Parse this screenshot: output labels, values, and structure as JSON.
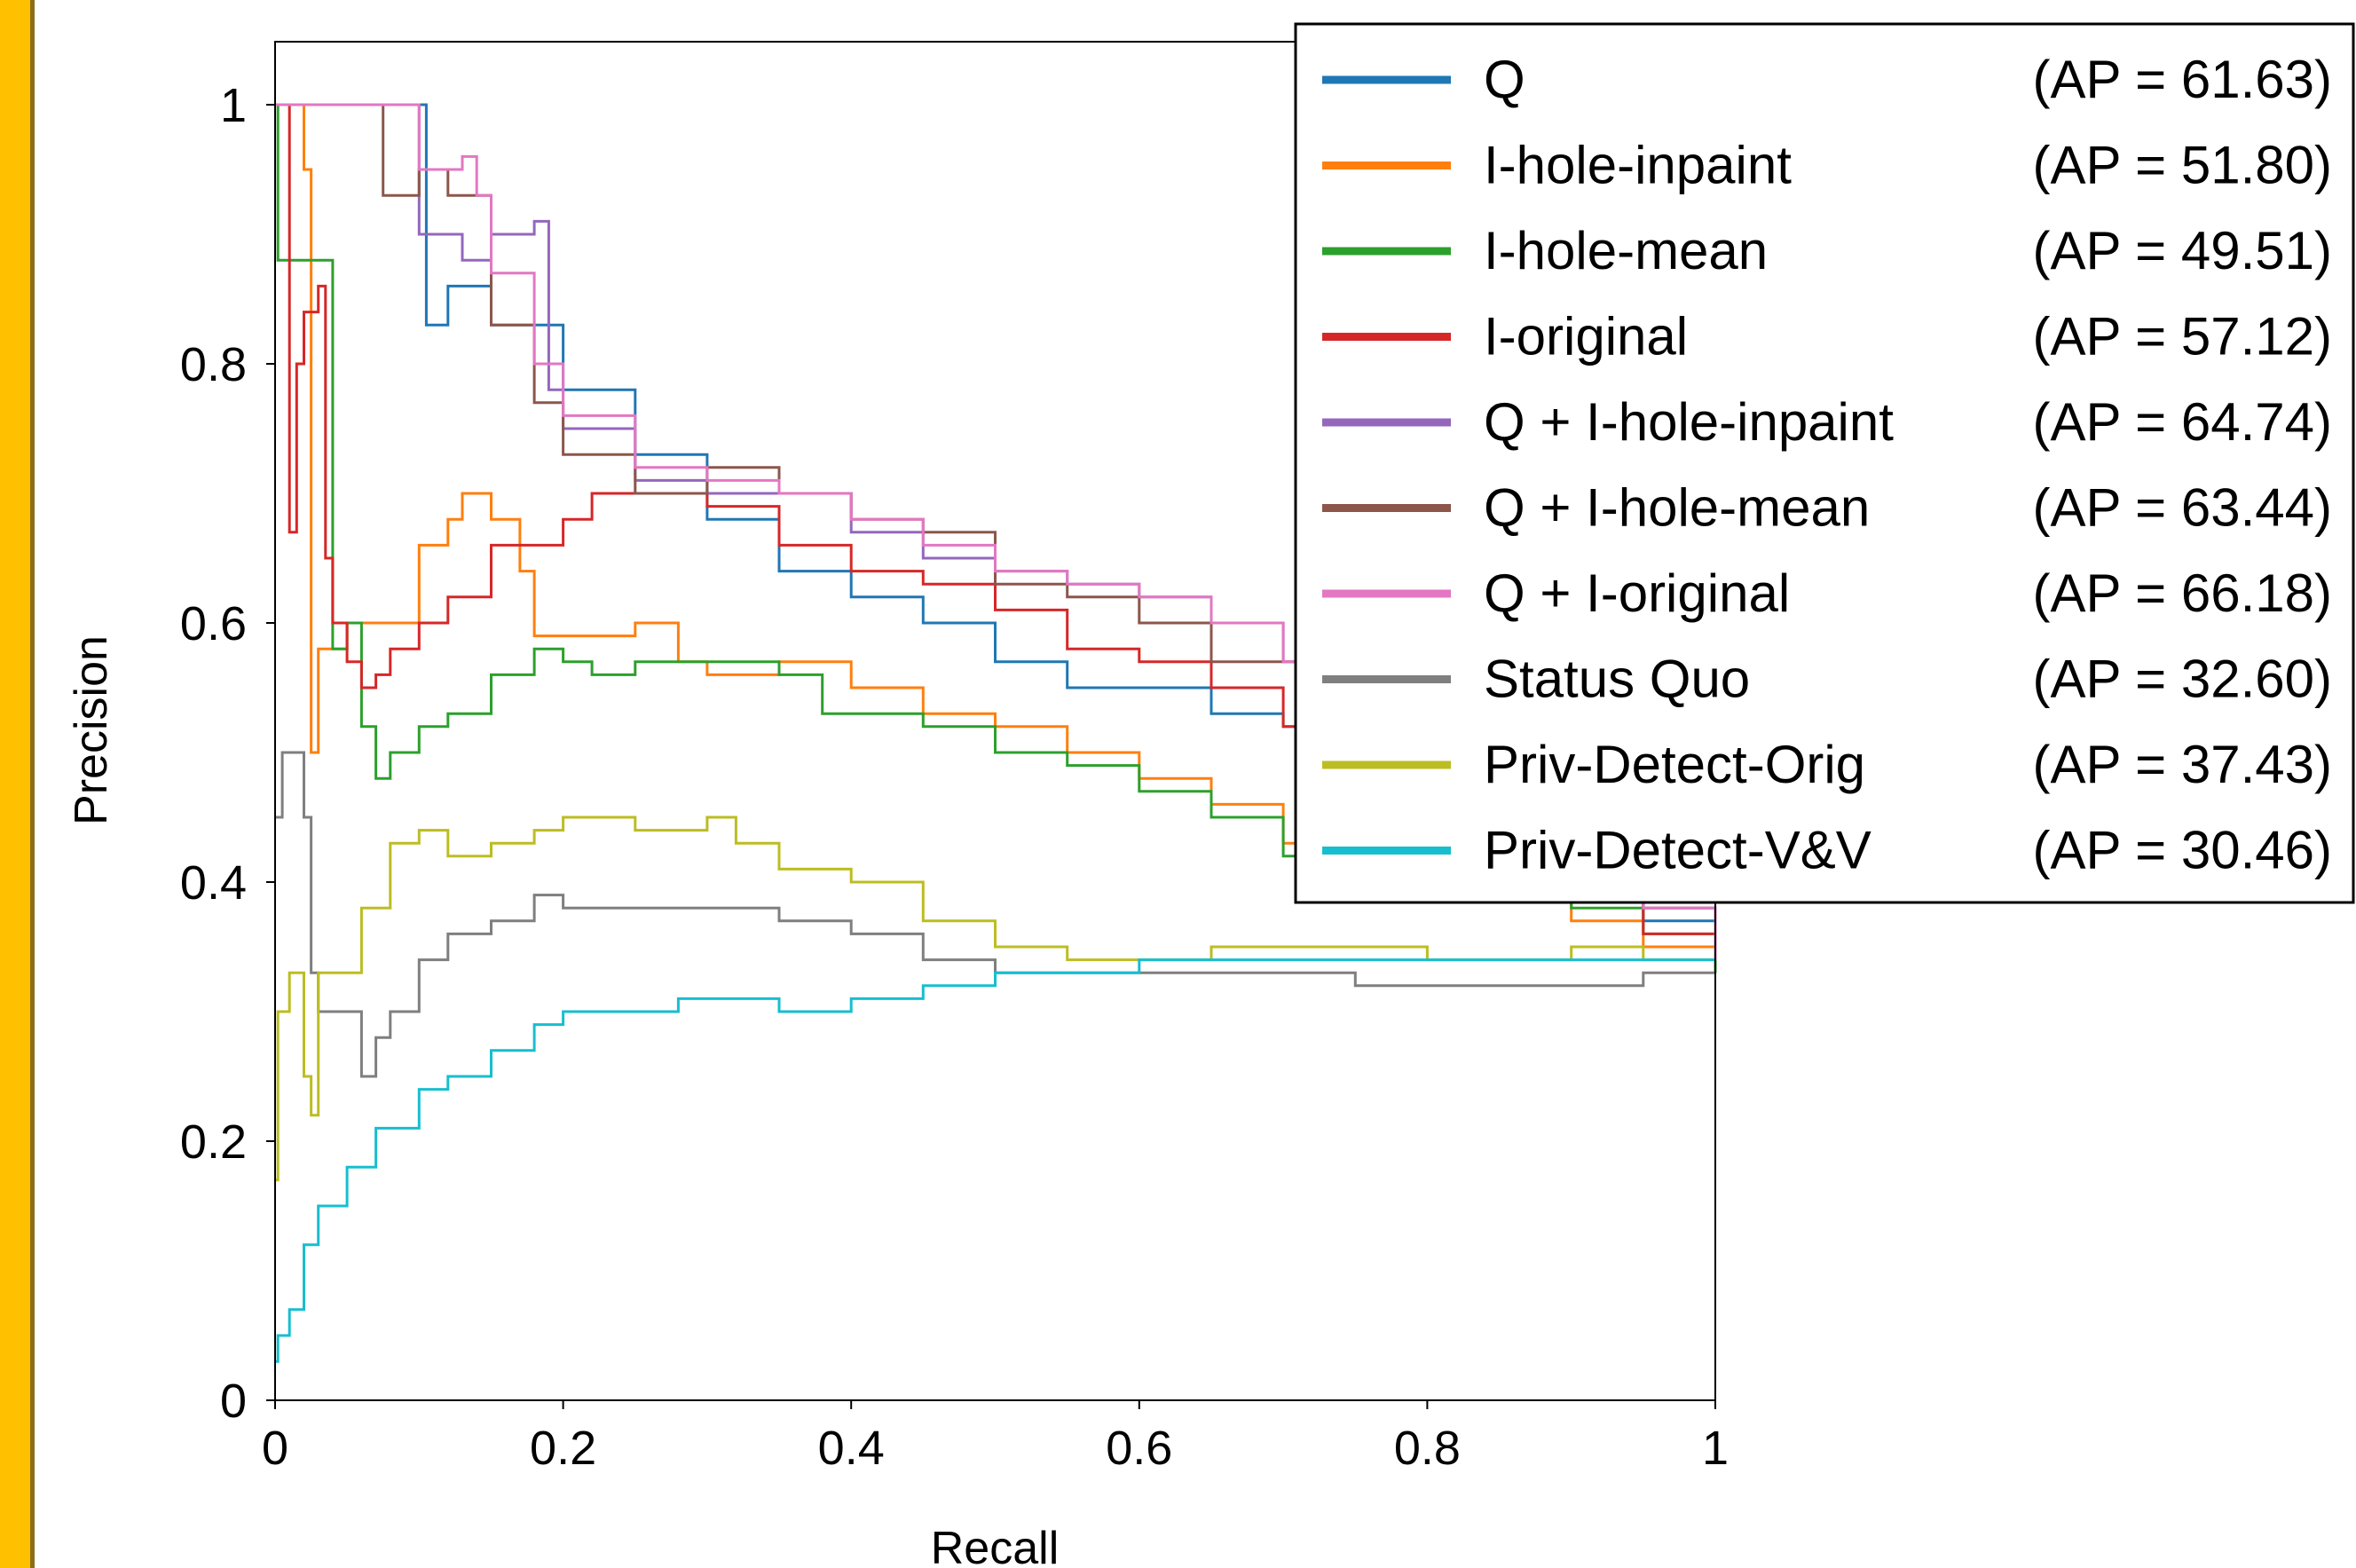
{
  "chart_data": {
    "type": "line",
    "step": true,
    "title": "",
    "xlabel": "Recall",
    "ylabel": "Precision",
    "xlim": [
      0,
      1
    ],
    "ylim": [
      0,
      1.05
    ],
    "x_ticks": [
      "0",
      "0.2",
      "0.4",
      "0.6",
      "0.8",
      "1"
    ],
    "y_ticks": [
      "0",
      "0.2",
      "0.4",
      "0.6",
      "0.8",
      "1"
    ],
    "grid": false,
    "legend_position": "top-right",
    "series": [
      {
        "name": "Q",
        "ap": "(AP = 61.63)",
        "color": "#1f77b4",
        "points": [
          [
            0,
            1.0
          ],
          [
            0.08,
            1.0
          ],
          [
            0.095,
            1.0
          ],
          [
            0.105,
            0.83
          ],
          [
            0.12,
            0.86
          ],
          [
            0.15,
            0.83
          ],
          [
            0.2,
            0.78
          ],
          [
            0.25,
            0.73
          ],
          [
            0.3,
            0.68
          ],
          [
            0.35,
            0.64
          ],
          [
            0.4,
            0.62
          ],
          [
            0.45,
            0.6
          ],
          [
            0.5,
            0.57
          ],
          [
            0.55,
            0.55
          ],
          [
            0.6,
            0.55
          ],
          [
            0.65,
            0.53
          ],
          [
            0.7,
            0.52
          ],
          [
            0.75,
            0.5
          ],
          [
            0.8,
            0.47
          ],
          [
            0.85,
            0.44
          ],
          [
            0.9,
            0.4
          ],
          [
            0.95,
            0.37
          ],
          [
            1.0,
            0.34
          ]
        ]
      },
      {
        "name": "I-hole-inpaint",
        "ap": "(AP = 51.80)",
        "color": "#ff7f0e",
        "points": [
          [
            0,
            1.0
          ],
          [
            0.01,
            1.0
          ],
          [
            0.02,
            0.95
          ],
          [
            0.025,
            0.5
          ],
          [
            0.03,
            0.58
          ],
          [
            0.05,
            0.6
          ],
          [
            0.08,
            0.6
          ],
          [
            0.1,
            0.66
          ],
          [
            0.12,
            0.68
          ],
          [
            0.13,
            0.7
          ],
          [
            0.15,
            0.68
          ],
          [
            0.17,
            0.64
          ],
          [
            0.18,
            0.59
          ],
          [
            0.2,
            0.59
          ],
          [
            0.25,
            0.6
          ],
          [
            0.28,
            0.57
          ],
          [
            0.3,
            0.56
          ],
          [
            0.35,
            0.57
          ],
          [
            0.4,
            0.55
          ],
          [
            0.45,
            0.53
          ],
          [
            0.5,
            0.52
          ],
          [
            0.55,
            0.5
          ],
          [
            0.6,
            0.48
          ],
          [
            0.65,
            0.46
          ],
          [
            0.7,
            0.43
          ],
          [
            0.75,
            0.43
          ],
          [
            0.8,
            0.41
          ],
          [
            0.85,
            0.4
          ],
          [
            0.9,
            0.37
          ],
          [
            0.95,
            0.35
          ],
          [
            1.0,
            0.33
          ]
        ]
      },
      {
        "name": "I-hole-mean",
        "ap": "(AP = 49.51)",
        "color": "#2ca02c",
        "points": [
          [
            0,
            1.0
          ],
          [
            0.002,
            0.88
          ],
          [
            0.035,
            0.88
          ],
          [
            0.04,
            0.58
          ],
          [
            0.05,
            0.6
          ],
          [
            0.06,
            0.52
          ],
          [
            0.07,
            0.48
          ],
          [
            0.08,
            0.5
          ],
          [
            0.1,
            0.52
          ],
          [
            0.12,
            0.53
          ],
          [
            0.15,
            0.56
          ],
          [
            0.18,
            0.58
          ],
          [
            0.2,
            0.57
          ],
          [
            0.22,
            0.56
          ],
          [
            0.25,
            0.57
          ],
          [
            0.3,
            0.57
          ],
          [
            0.35,
            0.56
          ],
          [
            0.38,
            0.53
          ],
          [
            0.4,
            0.53
          ],
          [
            0.45,
            0.52
          ],
          [
            0.5,
            0.5
          ],
          [
            0.55,
            0.49
          ],
          [
            0.6,
            0.47
          ],
          [
            0.65,
            0.45
          ],
          [
            0.7,
            0.42
          ],
          [
            0.75,
            0.42
          ],
          [
            0.8,
            0.41
          ],
          [
            0.85,
            0.39
          ],
          [
            0.9,
            0.38
          ],
          [
            0.95,
            0.36
          ],
          [
            1.0,
            0.33
          ]
        ]
      },
      {
        "name": "I-original",
        "ap": "(AP = 57.12)",
        "color": "#d62728",
        "points": [
          [
            0,
            1.0
          ],
          [
            0.01,
            0.67
          ],
          [
            0.015,
            0.8
          ],
          [
            0.02,
            0.84
          ],
          [
            0.03,
            0.86
          ],
          [
            0.035,
            0.65
          ],
          [
            0.04,
            0.6
          ],
          [
            0.05,
            0.57
          ],
          [
            0.06,
            0.55
          ],
          [
            0.07,
            0.56
          ],
          [
            0.08,
            0.58
          ],
          [
            0.1,
            0.6
          ],
          [
            0.12,
            0.62
          ],
          [
            0.15,
            0.66
          ],
          [
            0.18,
            0.66
          ],
          [
            0.2,
            0.68
          ],
          [
            0.22,
            0.7
          ],
          [
            0.25,
            0.7
          ],
          [
            0.3,
            0.69
          ],
          [
            0.35,
            0.66
          ],
          [
            0.4,
            0.64
          ],
          [
            0.45,
            0.63
          ],
          [
            0.5,
            0.61
          ],
          [
            0.55,
            0.58
          ],
          [
            0.6,
            0.57
          ],
          [
            0.65,
            0.55
          ],
          [
            0.7,
            0.52
          ],
          [
            0.75,
            0.48
          ],
          [
            0.8,
            0.45
          ],
          [
            0.85,
            0.42
          ],
          [
            0.9,
            0.39
          ],
          [
            0.95,
            0.36
          ],
          [
            1.0,
            0.34
          ]
        ]
      },
      {
        "name": "Q + I-hole-inpaint",
        "ap": "(AP = 64.74)",
        "color": "#9467bd",
        "points": [
          [
            0,
            1.0
          ],
          [
            0.1,
            1.0
          ],
          [
            0.1,
            0.9
          ],
          [
            0.13,
            0.88
          ],
          [
            0.15,
            0.9
          ],
          [
            0.18,
            0.91
          ],
          [
            0.19,
            0.78
          ],
          [
            0.2,
            0.75
          ],
          [
            0.25,
            0.71
          ],
          [
            0.3,
            0.7
          ],
          [
            0.35,
            0.7
          ],
          [
            0.4,
            0.67
          ],
          [
            0.45,
            0.65
          ],
          [
            0.5,
            0.64
          ],
          [
            0.55,
            0.63
          ],
          [
            0.6,
            0.62
          ],
          [
            0.65,
            0.6
          ],
          [
            0.7,
            0.57
          ],
          [
            0.75,
            0.53
          ],
          [
            0.8,
            0.5
          ],
          [
            0.85,
            0.46
          ],
          [
            0.9,
            0.42
          ],
          [
            0.95,
            0.38
          ],
          [
            1.0,
            0.35
          ]
        ]
      },
      {
        "name": "Q + I-hole-mean",
        "ap": "(AP = 63.44)",
        "color": "#8c564b",
        "points": [
          [
            0,
            1.0
          ],
          [
            0.07,
            1.0
          ],
          [
            0.075,
            0.93
          ],
          [
            0.1,
            0.95
          ],
          [
            0.12,
            0.93
          ],
          [
            0.15,
            0.83
          ],
          [
            0.18,
            0.77
          ],
          [
            0.2,
            0.73
          ],
          [
            0.25,
            0.7
          ],
          [
            0.3,
            0.72
          ],
          [
            0.35,
            0.7
          ],
          [
            0.4,
            0.68
          ],
          [
            0.45,
            0.67
          ],
          [
            0.5,
            0.63
          ],
          [
            0.55,
            0.62
          ],
          [
            0.6,
            0.6
          ],
          [
            0.65,
            0.57
          ],
          [
            0.7,
            0.57
          ],
          [
            0.75,
            0.53
          ],
          [
            0.8,
            0.49
          ],
          [
            0.85,
            0.45
          ],
          [
            0.9,
            0.42
          ],
          [
            0.95,
            0.38
          ],
          [
            1.0,
            0.34
          ]
        ]
      },
      {
        "name": "Q + I-original",
        "ap": "(AP = 66.18)",
        "color": "#e377c2",
        "points": [
          [
            0,
            1.0
          ],
          [
            0.1,
            1.0
          ],
          [
            0.1,
            0.95
          ],
          [
            0.13,
            0.96
          ],
          [
            0.14,
            0.93
          ],
          [
            0.15,
            0.87
          ],
          [
            0.18,
            0.8
          ],
          [
            0.2,
            0.76
          ],
          [
            0.25,
            0.72
          ],
          [
            0.3,
            0.71
          ],
          [
            0.35,
            0.7
          ],
          [
            0.4,
            0.68
          ],
          [
            0.45,
            0.66
          ],
          [
            0.5,
            0.64
          ],
          [
            0.55,
            0.63
          ],
          [
            0.6,
            0.62
          ],
          [
            0.65,
            0.6
          ],
          [
            0.7,
            0.57
          ],
          [
            0.75,
            0.54
          ],
          [
            0.8,
            0.5
          ],
          [
            0.85,
            0.46
          ],
          [
            0.9,
            0.42
          ],
          [
            0.95,
            0.38
          ],
          [
            1.0,
            0.34
          ]
        ]
      },
      {
        "name": "Status Quo",
        "ap": "(AP = 32.60)",
        "color": "#7f7f7f",
        "points": [
          [
            0,
            0.45
          ],
          [
            0.005,
            0.5
          ],
          [
            0.02,
            0.45
          ],
          [
            0.025,
            0.33
          ],
          [
            0.03,
            0.3
          ],
          [
            0.05,
            0.3
          ],
          [
            0.06,
            0.25
          ],
          [
            0.07,
            0.28
          ],
          [
            0.08,
            0.3
          ],
          [
            0.1,
            0.34
          ],
          [
            0.12,
            0.36
          ],
          [
            0.15,
            0.37
          ],
          [
            0.18,
            0.39
          ],
          [
            0.2,
            0.38
          ],
          [
            0.25,
            0.38
          ],
          [
            0.3,
            0.38
          ],
          [
            0.35,
            0.37
          ],
          [
            0.4,
            0.36
          ],
          [
            0.45,
            0.34
          ],
          [
            0.5,
            0.33
          ],
          [
            0.55,
            0.33
          ],
          [
            0.6,
            0.33
          ],
          [
            0.65,
            0.33
          ],
          [
            0.7,
            0.33
          ],
          [
            0.75,
            0.32
          ],
          [
            0.8,
            0.32
          ],
          [
            0.85,
            0.32
          ],
          [
            0.9,
            0.32
          ],
          [
            0.95,
            0.33
          ],
          [
            1.0,
            0.33
          ]
        ]
      },
      {
        "name": "Priv-Detect-Orig",
        "ap": "(AP = 37.43)",
        "color": "#bcbd22",
        "points": [
          [
            0,
            0.17
          ],
          [
            0.002,
            0.3
          ],
          [
            0.01,
            0.33
          ],
          [
            0.02,
            0.25
          ],
          [
            0.025,
            0.22
          ],
          [
            0.03,
            0.33
          ],
          [
            0.05,
            0.33
          ],
          [
            0.06,
            0.38
          ],
          [
            0.08,
            0.43
          ],
          [
            0.1,
            0.44
          ],
          [
            0.12,
            0.42
          ],
          [
            0.15,
            0.43
          ],
          [
            0.18,
            0.44
          ],
          [
            0.2,
            0.45
          ],
          [
            0.25,
            0.44
          ],
          [
            0.3,
            0.45
          ],
          [
            0.32,
            0.43
          ],
          [
            0.35,
            0.41
          ],
          [
            0.4,
            0.4
          ],
          [
            0.45,
            0.37
          ],
          [
            0.5,
            0.35
          ],
          [
            0.55,
            0.34
          ],
          [
            0.6,
            0.34
          ],
          [
            0.65,
            0.35
          ],
          [
            0.7,
            0.35
          ],
          [
            0.75,
            0.35
          ],
          [
            0.8,
            0.34
          ],
          [
            0.85,
            0.34
          ],
          [
            0.9,
            0.35
          ],
          [
            0.95,
            0.34
          ],
          [
            1.0,
            0.34
          ]
        ]
      },
      {
        "name": "Priv-Detect-V&V",
        "ap": "(AP = 30.46)",
        "color": "#17becf",
        "points": [
          [
            0,
            0.03
          ],
          [
            0.002,
            0.05
          ],
          [
            0.01,
            0.07
          ],
          [
            0.02,
            0.12
          ],
          [
            0.03,
            0.15
          ],
          [
            0.05,
            0.18
          ],
          [
            0.07,
            0.21
          ],
          [
            0.1,
            0.24
          ],
          [
            0.12,
            0.25
          ],
          [
            0.15,
            0.27
          ],
          [
            0.18,
            0.29
          ],
          [
            0.2,
            0.3
          ],
          [
            0.22,
            0.3
          ],
          [
            0.25,
            0.3
          ],
          [
            0.28,
            0.31
          ],
          [
            0.3,
            0.31
          ],
          [
            0.35,
            0.3
          ],
          [
            0.4,
            0.31
          ],
          [
            0.45,
            0.32
          ],
          [
            0.5,
            0.33
          ],
          [
            0.55,
            0.33
          ],
          [
            0.6,
            0.34
          ],
          [
            0.65,
            0.34
          ],
          [
            0.7,
            0.34
          ],
          [
            0.75,
            0.34
          ],
          [
            0.8,
            0.34
          ],
          [
            0.85,
            0.34
          ],
          [
            0.9,
            0.34
          ],
          [
            0.95,
            0.34
          ],
          [
            1.0,
            0.34
          ]
        ]
      }
    ]
  }
}
